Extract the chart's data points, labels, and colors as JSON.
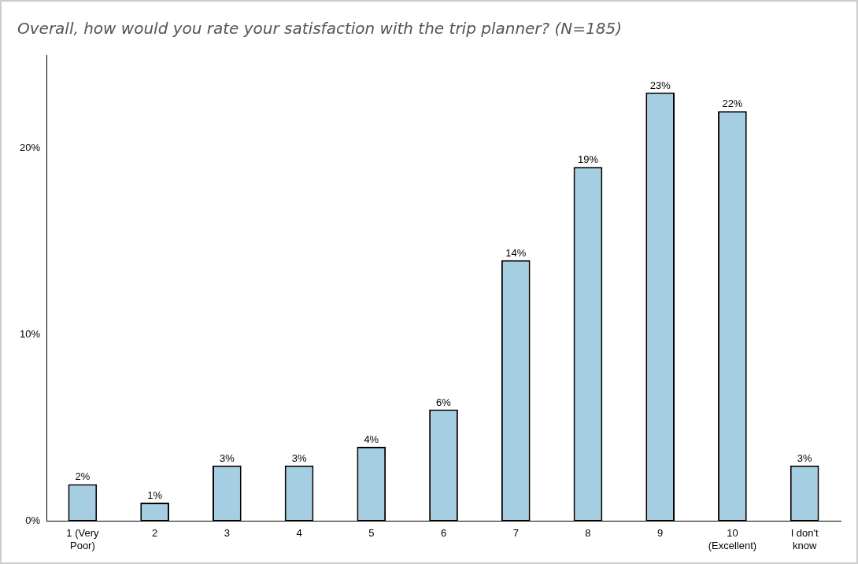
{
  "chart_data": {
    "type": "bar",
    "title": "Overall, how would you rate your satisfaction with the trip planner? (N=185)",
    "categories": [
      "1 (Very Poor)",
      "2",
      "3",
      "4",
      "5",
      "6",
      "7",
      "8",
      "9",
      "10 (Excellent)",
      "I don't know"
    ],
    "values": [
      2,
      1,
      3,
      3,
      4,
      6,
      14,
      19,
      23,
      22,
      3
    ],
    "value_labels": [
      "2%",
      "1%",
      "3%",
      "3%",
      "4%",
      "6%",
      "14%",
      "19%",
      "23%",
      "22%",
      "3%"
    ],
    "color": "#a6cee3",
    "ylim": [
      0,
      25
    ],
    "yticks": [
      {
        "value": 0,
        "label": "0%"
      },
      {
        "value": 10,
        "label": "10%"
      },
      {
        "value": 20,
        "label": "20%"
      }
    ],
    "grid": false,
    "legend": false
  }
}
